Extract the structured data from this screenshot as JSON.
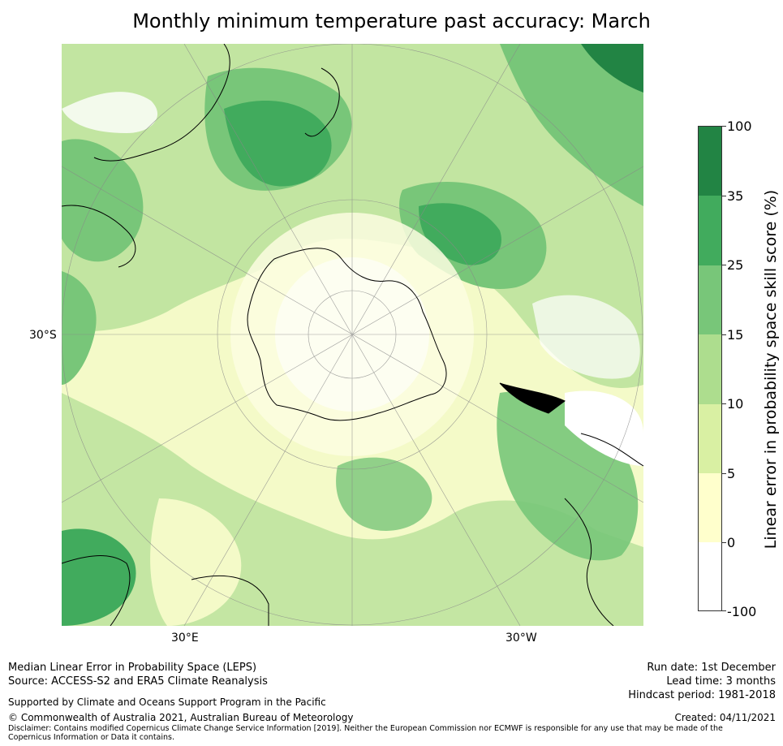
{
  "title": "Monthly minimum temperature past accuracy: March",
  "map": {
    "lat_label": "30°S",
    "lon_labels": [
      "30°E",
      "30°W"
    ],
    "land_outline_icon": "coastline-icon"
  },
  "colorbar": {
    "label": "Linear error in probability space skill score (%)",
    "ticks": [
      "100",
      "35",
      "25",
      "15",
      "10",
      "5",
      "0",
      "-100"
    ],
    "colors": [
      "#228444",
      "#41ab5d",
      "#78c679",
      "#addd8e",
      "#d9f0a3",
      "#ffffcc",
      "#ffffff"
    ]
  },
  "footer": {
    "left_line1": "Median Linear Error in Probability Space (LEPS)",
    "left_line2": "Source: ACCESS-S2 and ERA5 Climate Reanalysis",
    "support": "Supported by Climate and Oceans Support Program in the Pacific",
    "copyright": "© Commonwealth of Australia 2021, Australian Bureau of Meteorology",
    "disclaimer": "Disclaimer: Contains modified Copernicus Climate Change Service Information [2019]. Neither the European Commission nor ECMWF is responsible for any use that may be made of the Copernicus Information or Data it contains.",
    "run_date": "Run date: 1st December",
    "lead_time": "Lead time: 3 months",
    "hindcast": "Hindcast period: 1981-2018",
    "created": "Created: 04/11/2021"
  }
}
